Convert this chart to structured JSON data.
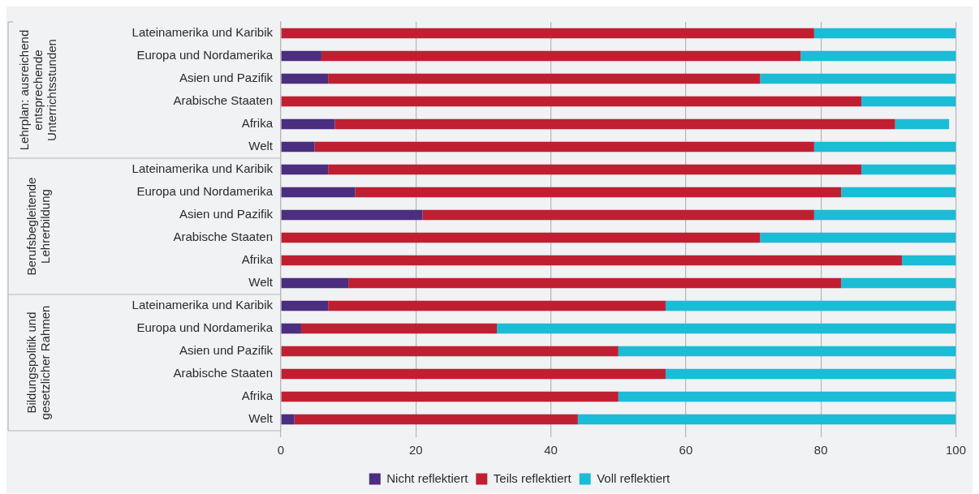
{
  "chart_data": {
    "type": "bar",
    "orientation": "horizontal",
    "stacked": true,
    "categories": [
      "Lateinamerika und Karibik",
      "Europa und Nordamerika",
      "Asien und Pazifik",
      "Arabische Staaten",
      "Afrika",
      "Welt",
      "Lateinamerika und Karibik",
      "Europa und Nordamerika",
      "Asien und Pazifik",
      "Arabische Staaten",
      "Afrika",
      "Welt",
      "Lateinamerika und Karibik",
      "Europa und Nordamerika",
      "Asien und Pazifik",
      "Arabische Staaten",
      "Afrika",
      "Welt"
    ],
    "series": [
      {
        "name": "Nicht reflektiert",
        "color": "#4b2e7f",
        "values": [
          0,
          6,
          7,
          0,
          8,
          5,
          7,
          11,
          21,
          0,
          0,
          10,
          7,
          3,
          0,
          0,
          0,
          2
        ]
      },
      {
        "name": "Teils reflektiert",
        "color": "#c01f32",
        "values": [
          79,
          71,
          64,
          86,
          83,
          74,
          79,
          72,
          58,
          71,
          92,
          73,
          50,
          29,
          50,
          57,
          50,
          42
        ]
      },
      {
        "name": "Voll reflektiert",
        "color": "#1bbcd6",
        "values": [
          21,
          23,
          29,
          14,
          8,
          21,
          14,
          17,
          21,
          29,
          8,
          17,
          43,
          68,
          50,
          43,
          50,
          56
        ]
      }
    ],
    "xlim": [
      0,
      100
    ],
    "xticks": [
      0,
      20,
      40,
      60,
      80,
      100
    ],
    "grid": "x",
    "legend": "bottom",
    "annotations": [
      "Lehrplan: ausreichend entsprechende Unterrichtsstunden",
      "Berufsbegleitende Lehrerbildung",
      "Bildungspolitik und gesetzlicher Rahmen"
    ]
  }
}
